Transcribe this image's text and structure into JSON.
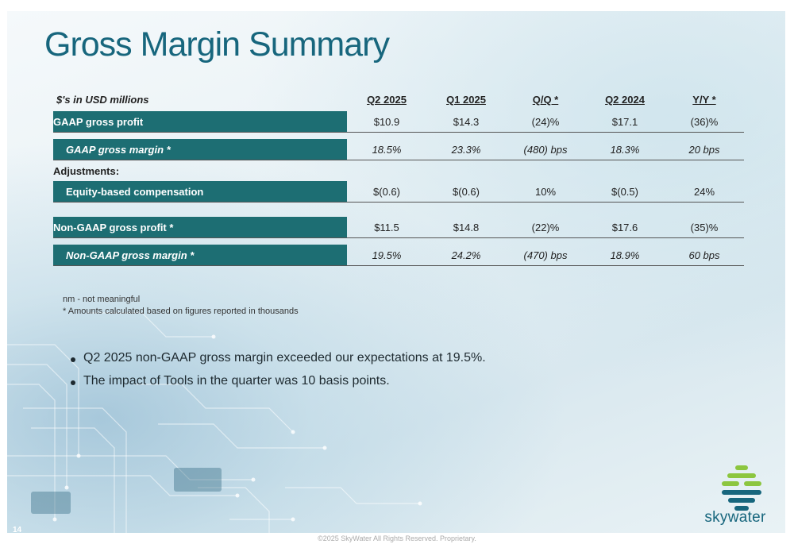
{
  "slide": {
    "title": "Gross Margin Summary",
    "page_number": "14",
    "footer": "©2025 SkyWater All Rights Reserved. Proprietary.",
    "logo_text": "skywater"
  },
  "table": {
    "header_label": "$'s in USD millions",
    "columns": [
      "Q2 2025",
      "Q1 2025",
      "Q/Q *",
      "Q2 2024",
      "Y/Y *"
    ],
    "rows": {
      "gaap_gross_profit": {
        "label": "GAAP gross profit",
        "values": [
          "$10.9",
          "$14.3",
          "(24)%",
          "$17.1",
          "(36)%"
        ]
      },
      "gaap_gross_margin": {
        "label": "GAAP gross margin *",
        "values": [
          "18.5%",
          "23.3%",
          "(480) bps",
          "18.3%",
          "20 bps"
        ]
      },
      "adjustments_label": "Adjustments:",
      "equity_comp": {
        "label": "Equity-based compensation",
        "values": [
          "$(0.6)",
          "$(0.6)",
          "10%",
          "$(0.5)",
          "24%"
        ]
      },
      "non_gaap_gross_profit": {
        "label": "Non-GAAP gross profit *",
        "values": [
          "$11.5",
          "$14.8",
          "(22)%",
          "$17.6",
          "(35)%"
        ]
      },
      "non_gaap_gross_margin": {
        "label": "Non-GAAP gross margin *",
        "values": [
          "19.5%",
          "24.2%",
          "(470) bps",
          "18.9%",
          "60 bps"
        ]
      }
    }
  },
  "notes": [
    "nm - not meaningful",
    "* Amounts calculated based on figures reported in thousands"
  ],
  "bullets": [
    "Q2 2025 non-GAAP gross margin exceeded our expectations at 19.5%.",
    "The impact of Tools in the quarter was 10 basis points."
  ],
  "colors": {
    "title": "#17667d",
    "label_fill": "#1d6e73",
    "logo_green": "#8cc63f",
    "logo_teal": "#17667d"
  }
}
